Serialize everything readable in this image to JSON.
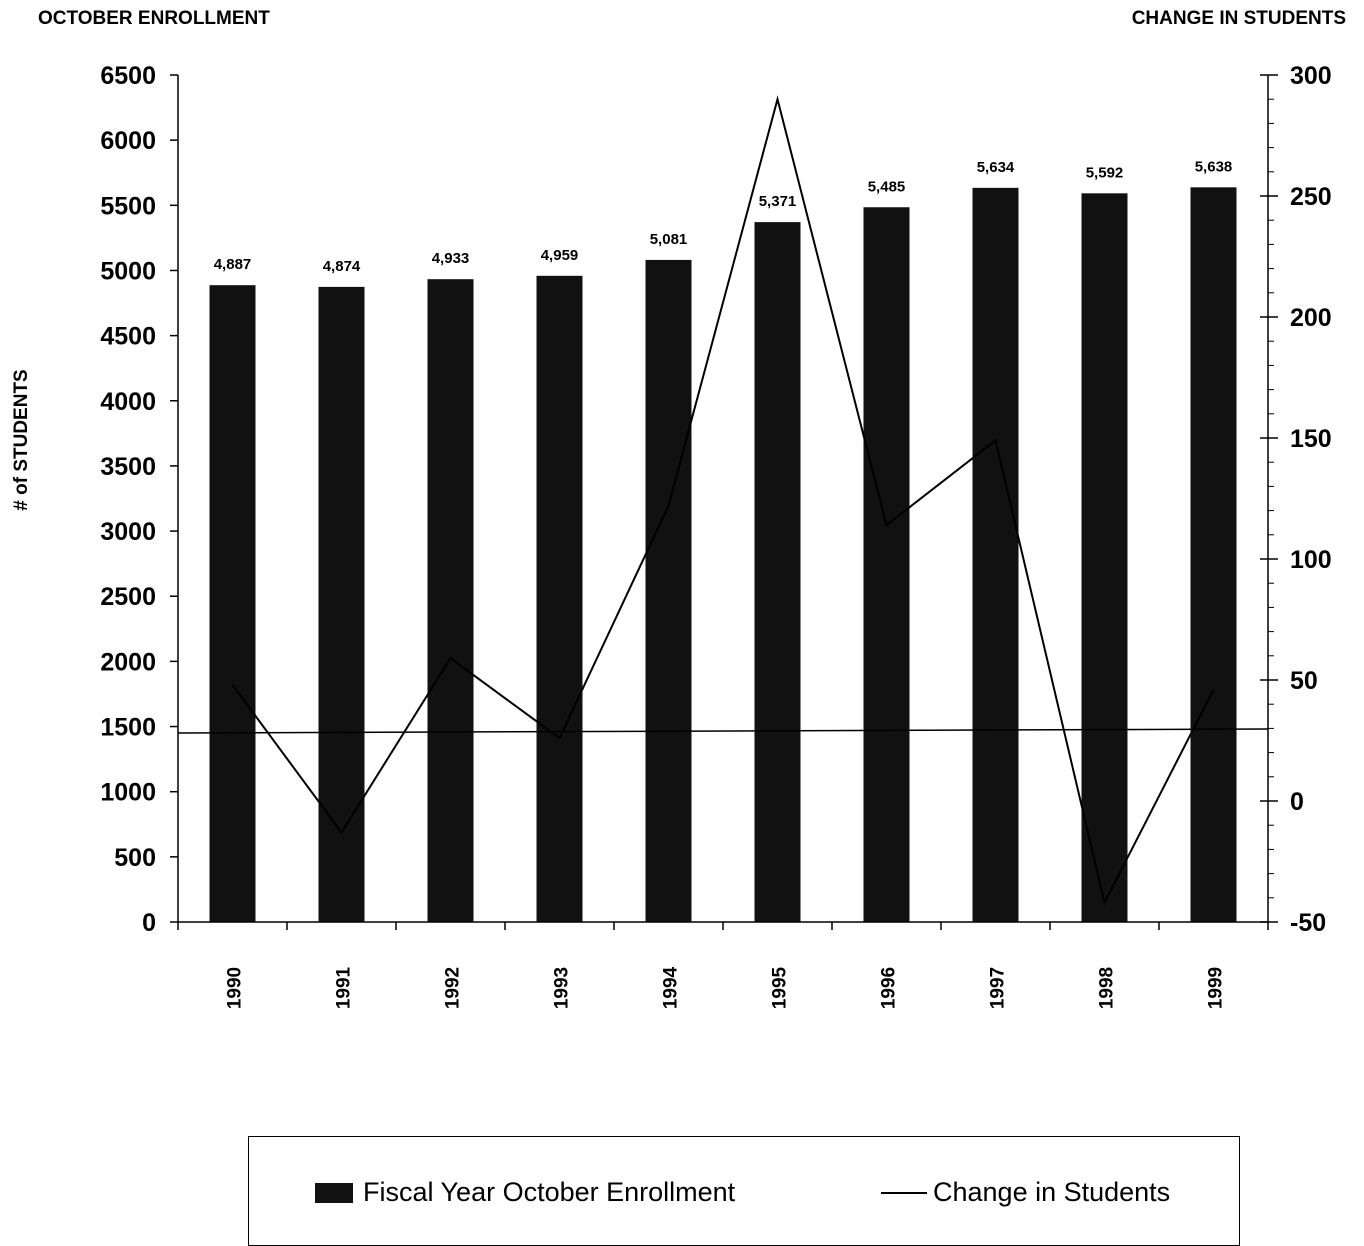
{
  "left_title": "OCTOBER ENROLLMENT",
  "right_title": "CHANGE IN STUDENTS",
  "chart_data": {
    "type": "bar",
    "categories": [
      "1990",
      "1991",
      "1992",
      "1993",
      "1994",
      "1995",
      "1996",
      "1997",
      "1998",
      "1999"
    ],
    "series": [
      {
        "name": "Fiscal Year October Enrollment",
        "type": "bar",
        "axis": "left",
        "values": [
          4887,
          4874,
          4933,
          4959,
          5081,
          5371,
          5485,
          5634,
          5592,
          5638
        ],
        "data_labels": [
          "4,887",
          "4,874",
          "4,933",
          "4,959",
          "5,081",
          "5,371",
          "5,485",
          "5,634",
          "5,592",
          "5,638"
        ],
        "color": "#111111"
      },
      {
        "name": "Change in Students",
        "type": "line",
        "axis": "right",
        "values": [
          48,
          -13,
          59,
          26,
          122,
          290,
          114,
          149,
          -42,
          46
        ],
        "color": "#000000"
      }
    ],
    "ylabel": "# of STUDENTS",
    "ylim": [
      0,
      6500
    ],
    "yticks": [
      "0",
      "500",
      "1000",
      "1500",
      "2000",
      "2500",
      "3000",
      "3500",
      "4000",
      "4500",
      "5000",
      "5500",
      "6000",
      "6500"
    ],
    "y2lim": [
      -50,
      300
    ],
    "y2ticks": [
      "-50",
      "0",
      "50",
      "100",
      "150",
      "200",
      "250",
      "300"
    ],
    "legend_position": "bottom",
    "grid": false
  }
}
